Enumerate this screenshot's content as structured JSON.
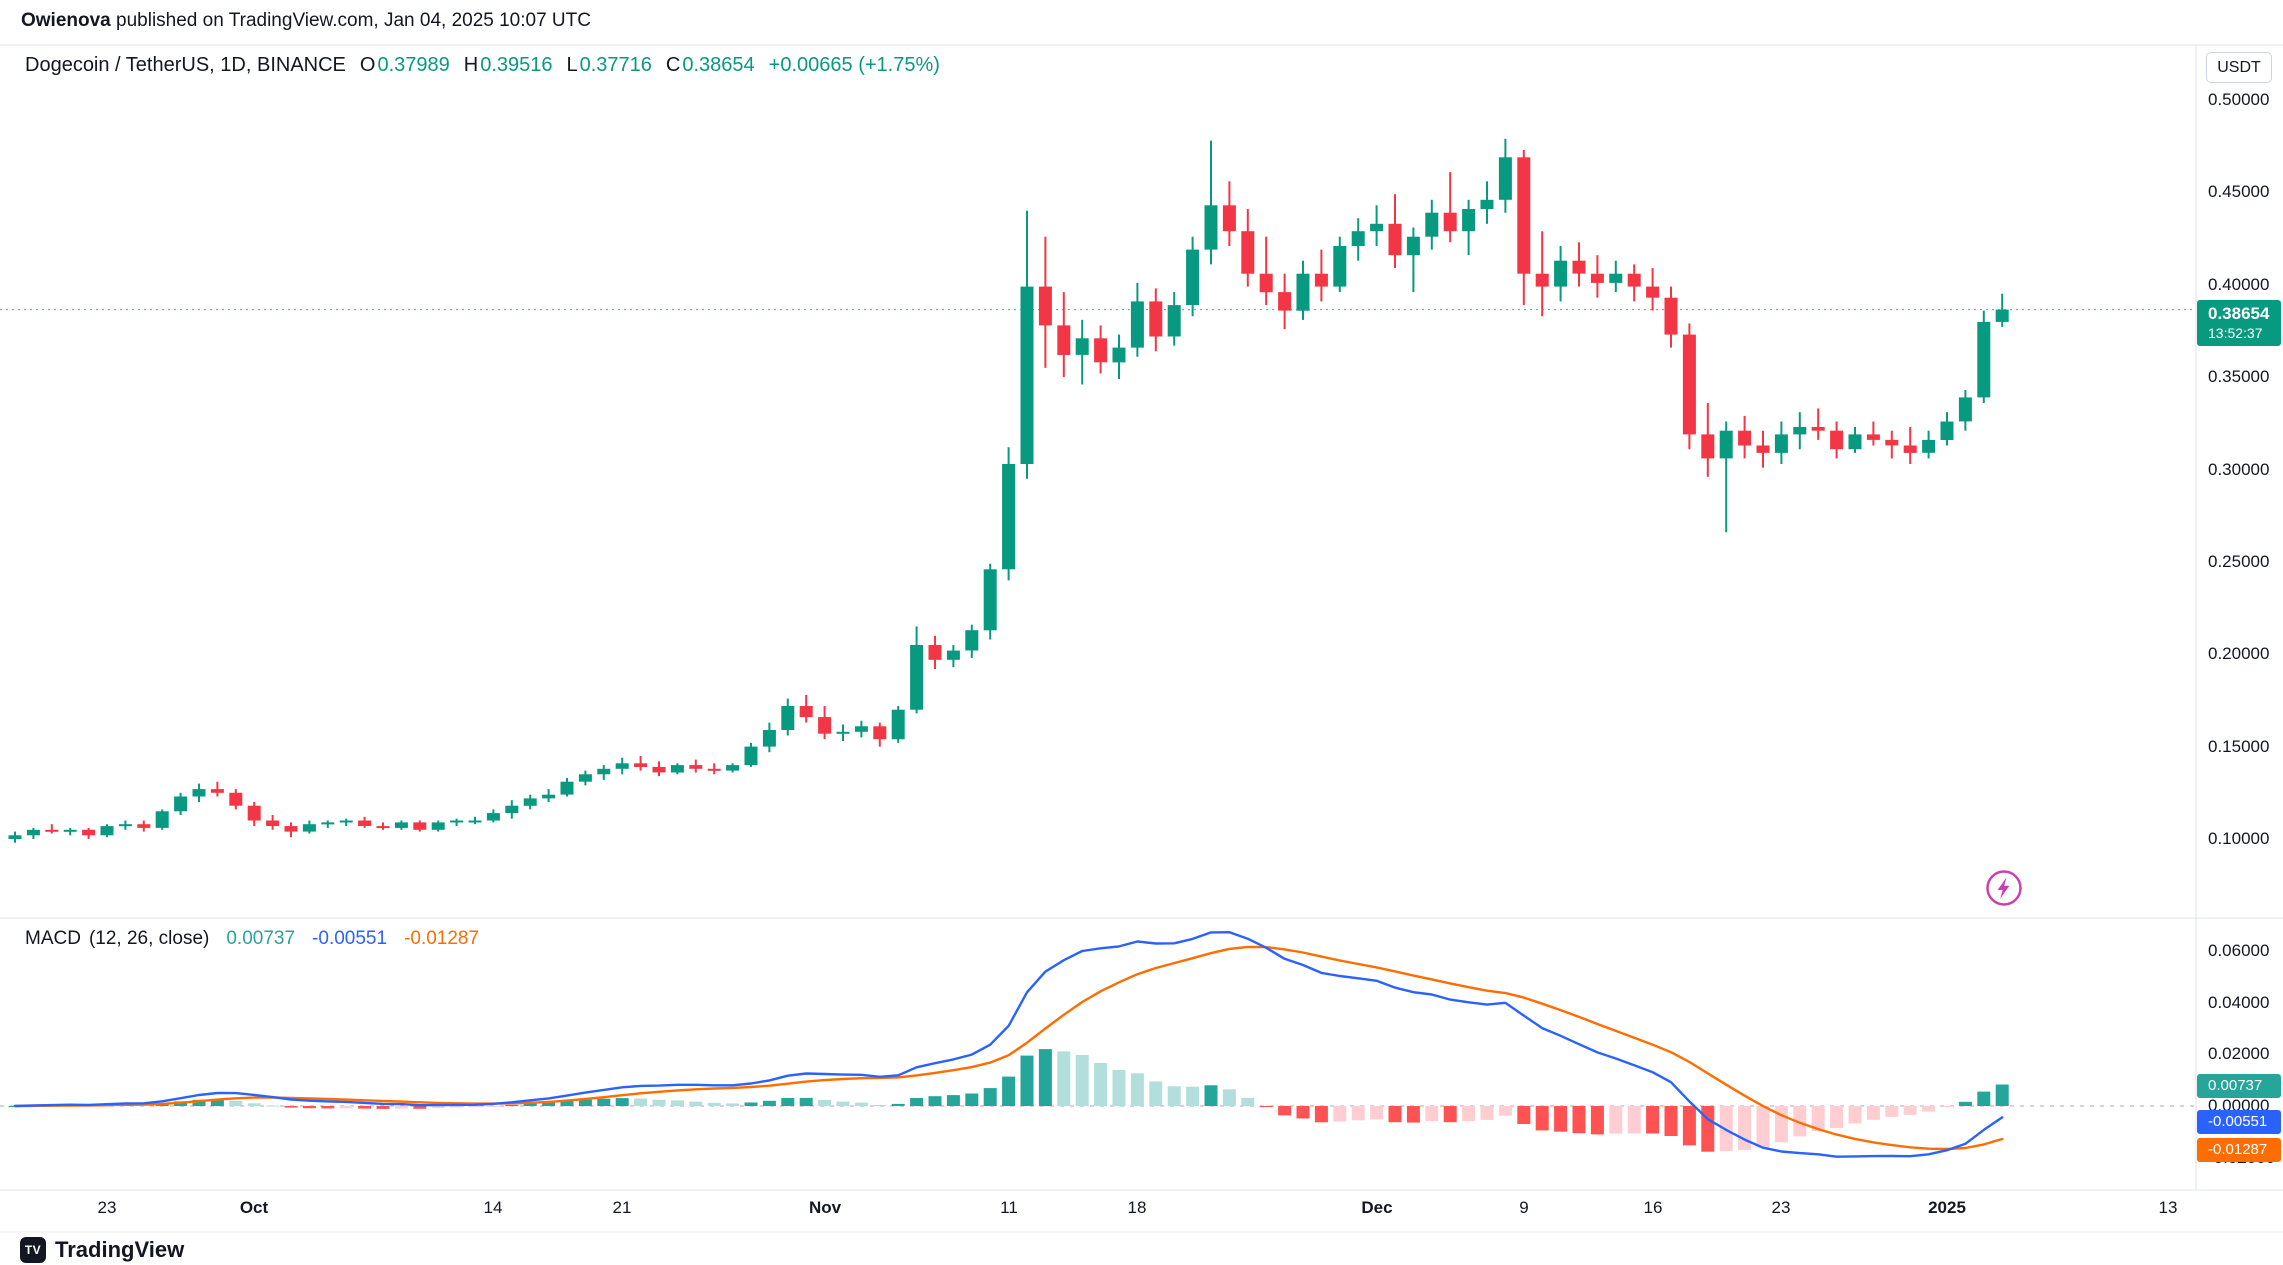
{
  "attribution": {
    "author": "Owienova",
    "rest": " published on TradingView.com, Jan 04, 2025 10:07 UTC"
  },
  "symbol_bar": {
    "title": "Dogecoin / TetherUS, 1D, BINANCE",
    "ohlc": [
      {
        "label": "O",
        "value": "0.37989"
      },
      {
        "label": "H",
        "value": "0.39516"
      },
      {
        "label": "L",
        "value": "0.37716"
      },
      {
        "label": "C",
        "value": "0.38654"
      }
    ],
    "change": "+0.00665 (+1.75%)",
    "up_color": "#089981",
    "down_color": "#f23645"
  },
  "price_scale": {
    "currency_label": "USDT",
    "ticks": [
      {
        "label": "0.50000",
        "value": 0.5
      },
      {
        "label": "0.45000",
        "value": 0.45
      },
      {
        "label": "0.40000",
        "value": 0.4
      },
      {
        "label": "0.35000",
        "value": 0.35
      },
      {
        "label": "0.30000",
        "value": 0.3
      },
      {
        "label": "0.25000",
        "value": 0.25
      },
      {
        "label": "0.20000",
        "value": 0.2
      },
      {
        "label": "0.15000",
        "value": 0.15
      },
      {
        "label": "0.10000",
        "value": 0.1
      }
    ],
    "badge": {
      "price": "0.38654",
      "countdown": "13:52:37",
      "color": "#089981"
    }
  },
  "macd": {
    "title": "MACD",
    "params_label": "(12, 26, close)",
    "values": [
      {
        "value": "0.00737",
        "color": "#26a69a"
      },
      {
        "value": "-0.00551",
        "color": "#2962ff"
      },
      {
        "value": "-0.01287",
        "color": "#ff6d00"
      }
    ],
    "ticks": [
      {
        "label": "0.06000",
        "value": 0.06
      },
      {
        "label": "0.04000",
        "value": 0.04
      },
      {
        "label": "0.02000",
        "value": 0.02
      },
      {
        "label": "0.00000",
        "value": 0.0
      },
      {
        "label": "-0.02000",
        "value": -0.02
      }
    ],
    "badges": [
      {
        "value": "0.00737",
        "color": "#26a69a"
      },
      {
        "value": "-0.00551",
        "color": "#2962ff"
      },
      {
        "value": "-0.01287",
        "color": "#ff6d00"
      }
    ]
  },
  "time_axis": {
    "ticks": [
      {
        "label": "23",
        "day": 5
      },
      {
        "label": "Oct",
        "day": 13,
        "strong": true
      },
      {
        "label": "14",
        "day": 26
      },
      {
        "label": "21",
        "day": 33
      },
      {
        "label": "Nov",
        "day": 44,
        "strong": true
      },
      {
        "label": "11",
        "day": 54
      },
      {
        "label": "18",
        "day": 61
      },
      {
        "label": "Dec",
        "day": 74,
        "strong": true
      },
      {
        "label": "9",
        "day": 82
      },
      {
        "label": "16",
        "day": 89
      },
      {
        "label": "23",
        "day": 96
      },
      {
        "label": "2025",
        "day": 105,
        "strong": true
      },
      {
        "label": "13",
        "day": 117
      }
    ]
  },
  "footer": {
    "logo_text": "TradingView"
  },
  "event_marker": {
    "icon": "lightning-icon",
    "color": "#cc3fae"
  },
  "chart_data": {
    "type": "candlestick",
    "symbol": "DOGEUSDT",
    "exchange": "BINANCE",
    "interval": "1D",
    "start_date": "2024-09-18",
    "up_color": "#089981",
    "down_color": "#f23645",
    "last_close": 0.38654,
    "candles": [
      [
        0.1,
        0.104,
        0.098,
        0.102
      ],
      [
        0.102,
        0.106,
        0.1,
        0.105
      ],
      [
        0.105,
        0.108,
        0.103,
        0.104
      ],
      [
        0.104,
        0.106,
        0.102,
        0.105
      ],
      [
        0.105,
        0.106,
        0.1,
        0.102
      ],
      [
        0.102,
        0.108,
        0.101,
        0.107
      ],
      [
        0.107,
        0.11,
        0.105,
        0.108
      ],
      [
        0.108,
        0.11,
        0.104,
        0.106
      ],
      [
        0.106,
        0.116,
        0.105,
        0.115
      ],
      [
        0.115,
        0.125,
        0.113,
        0.123
      ],
      [
        0.123,
        0.13,
        0.12,
        0.127
      ],
      [
        0.127,
        0.131,
        0.123,
        0.125
      ],
      [
        0.125,
        0.127,
        0.116,
        0.118
      ],
      [
        0.118,
        0.12,
        0.107,
        0.11
      ],
      [
        0.11,
        0.113,
        0.105,
        0.107
      ],
      [
        0.107,
        0.109,
        0.101,
        0.104
      ],
      [
        0.104,
        0.11,
        0.103,
        0.108
      ],
      [
        0.108,
        0.11,
        0.106,
        0.109
      ],
      [
        0.109,
        0.111,
        0.107,
        0.11
      ],
      [
        0.11,
        0.112,
        0.106,
        0.107
      ],
      [
        0.107,
        0.109,
        0.105,
        0.106
      ],
      [
        0.106,
        0.11,
        0.105,
        0.109
      ],
      [
        0.109,
        0.11,
        0.104,
        0.105
      ],
      [
        0.105,
        0.11,
        0.104,
        0.109
      ],
      [
        0.109,
        0.111,
        0.107,
        0.11
      ],
      [
        0.11,
        0.112,
        0.108,
        0.11
      ],
      [
        0.11,
        0.116,
        0.109,
        0.114
      ],
      [
        0.114,
        0.121,
        0.111,
        0.118
      ],
      [
        0.118,
        0.124,
        0.116,
        0.122
      ],
      [
        0.122,
        0.127,
        0.12,
        0.124
      ],
      [
        0.124,
        0.133,
        0.123,
        0.131
      ],
      [
        0.131,
        0.137,
        0.129,
        0.135
      ],
      [
        0.135,
        0.14,
        0.132,
        0.138
      ],
      [
        0.138,
        0.144,
        0.135,
        0.141
      ],
      [
        0.141,
        0.145,
        0.137,
        0.139
      ],
      [
        0.139,
        0.142,
        0.134,
        0.136
      ],
      [
        0.136,
        0.141,
        0.135,
        0.14
      ],
      [
        0.14,
        0.143,
        0.136,
        0.138
      ],
      [
        0.138,
        0.141,
        0.135,
        0.137
      ],
      [
        0.137,
        0.141,
        0.136,
        0.14
      ],
      [
        0.14,
        0.152,
        0.139,
        0.15
      ],
      [
        0.15,
        0.163,
        0.147,
        0.159
      ],
      [
        0.159,
        0.176,
        0.156,
        0.172
      ],
      [
        0.172,
        0.178,
        0.163,
        0.166
      ],
      [
        0.166,
        0.172,
        0.154,
        0.157
      ],
      [
        0.157,
        0.162,
        0.153,
        0.158
      ],
      [
        0.158,
        0.164,
        0.155,
        0.161
      ],
      [
        0.161,
        0.163,
        0.15,
        0.154
      ],
      [
        0.154,
        0.172,
        0.152,
        0.17
      ],
      [
        0.17,
        0.215,
        0.168,
        0.205
      ],
      [
        0.205,
        0.21,
        0.192,
        0.197
      ],
      [
        0.197,
        0.205,
        0.193,
        0.202
      ],
      [
        0.202,
        0.216,
        0.198,
        0.213
      ],
      [
        0.213,
        0.249,
        0.208,
        0.246
      ],
      [
        0.246,
        0.312,
        0.24,
        0.303
      ],
      [
        0.303,
        0.44,
        0.295,
        0.399
      ],
      [
        0.399,
        0.426,
        0.355,
        0.378
      ],
      [
        0.378,
        0.396,
        0.35,
        0.362
      ],
      [
        0.362,
        0.381,
        0.346,
        0.371
      ],
      [
        0.371,
        0.378,
        0.352,
        0.358
      ],
      [
        0.358,
        0.373,
        0.349,
        0.366
      ],
      [
        0.366,
        0.401,
        0.361,
        0.391
      ],
      [
        0.391,
        0.398,
        0.364,
        0.372
      ],
      [
        0.372,
        0.396,
        0.367,
        0.389
      ],
      [
        0.389,
        0.426,
        0.383,
        0.419
      ],
      [
        0.419,
        0.478,
        0.411,
        0.443
      ],
      [
        0.443,
        0.456,
        0.421,
        0.429
      ],
      [
        0.429,
        0.441,
        0.399,
        0.406
      ],
      [
        0.406,
        0.426,
        0.389,
        0.396
      ],
      [
        0.396,
        0.406,
        0.376,
        0.386
      ],
      [
        0.386,
        0.413,
        0.381,
        0.406
      ],
      [
        0.406,
        0.419,
        0.391,
        0.399
      ],
      [
        0.399,
        0.426,
        0.396,
        0.421
      ],
      [
        0.421,
        0.436,
        0.413,
        0.429
      ],
      [
        0.429,
        0.443,
        0.421,
        0.433
      ],
      [
        0.433,
        0.449,
        0.409,
        0.416
      ],
      [
        0.416,
        0.431,
        0.396,
        0.426
      ],
      [
        0.426,
        0.446,
        0.419,
        0.439
      ],
      [
        0.439,
        0.461,
        0.423,
        0.429
      ],
      [
        0.429,
        0.446,
        0.416,
        0.441
      ],
      [
        0.441,
        0.456,
        0.433,
        0.446
      ],
      [
        0.446,
        0.479,
        0.439,
        0.469
      ],
      [
        0.469,
        0.473,
        0.389,
        0.406
      ],
      [
        0.406,
        0.429,
        0.383,
        0.399
      ],
      [
        0.399,
        0.421,
        0.391,
        0.413
      ],
      [
        0.413,
        0.423,
        0.399,
        0.406
      ],
      [
        0.406,
        0.416,
        0.393,
        0.401
      ],
      [
        0.401,
        0.413,
        0.396,
        0.406
      ],
      [
        0.406,
        0.411,
        0.391,
        0.399
      ],
      [
        0.399,
        0.409,
        0.386,
        0.393
      ],
      [
        0.393,
        0.399,
        0.366,
        0.373
      ],
      [
        0.373,
        0.379,
        0.311,
        0.319
      ],
      [
        0.319,
        0.336,
        0.296,
        0.306
      ],
      [
        0.306,
        0.326,
        0.266,
        0.321
      ],
      [
        0.321,
        0.329,
        0.306,
        0.313
      ],
      [
        0.313,
        0.321,
        0.301,
        0.309
      ],
      [
        0.309,
        0.326,
        0.303,
        0.319
      ],
      [
        0.319,
        0.331,
        0.311,
        0.323
      ],
      [
        0.323,
        0.333,
        0.316,
        0.321
      ],
      [
        0.321,
        0.326,
        0.306,
        0.311
      ],
      [
        0.311,
        0.323,
        0.309,
        0.319
      ],
      [
        0.319,
        0.326,
        0.313,
        0.316
      ],
      [
        0.316,
        0.321,
        0.306,
        0.313
      ],
      [
        0.313,
        0.323,
        0.303,
        0.309
      ],
      [
        0.309,
        0.321,
        0.306,
        0.316
      ],
      [
        0.316,
        0.331,
        0.313,
        0.326
      ],
      [
        0.326,
        0.343,
        0.321,
        0.339
      ],
      [
        0.339,
        0.386,
        0.336,
        0.37989
      ],
      [
        0.37989,
        0.39516,
        0.37716,
        0.38654
      ]
    ],
    "indicator": {
      "type": "MACD",
      "fast": 12,
      "slow": 26,
      "signal": 9,
      "macd_color": "#2962ff",
      "signal_color": "#ff6d00",
      "hist_colors": {
        "grow_above": "#26a69a",
        "fall_above": "#b2dfdb",
        "fall_below": "#ff5252",
        "grow_below": "#ffcdd2"
      },
      "last": {
        "histogram": 0.00737,
        "macd": -0.00551,
        "signal": -0.01287
      }
    }
  }
}
